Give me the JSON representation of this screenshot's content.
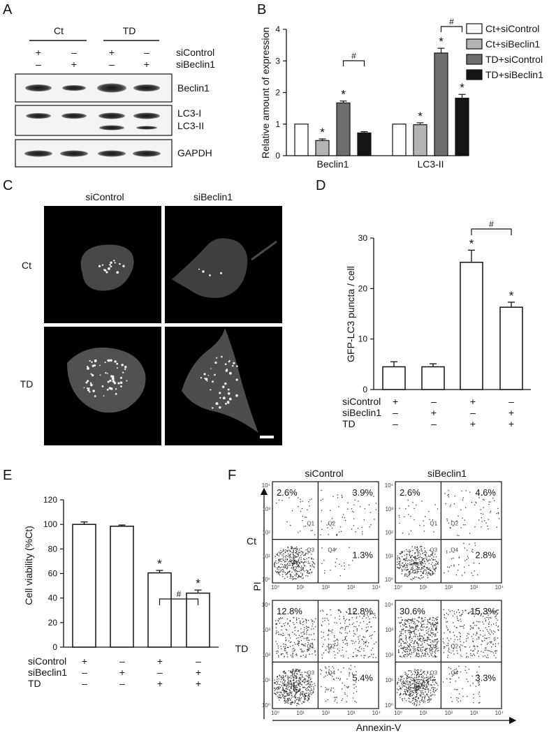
{
  "panels": {
    "A": {
      "label": "A",
      "groups": [
        "Ct",
        "TD"
      ],
      "row_labels": [
        "siControl",
        "siBeclin1"
      ],
      "signs": [
        [
          "+",
          "–",
          "+",
          "–"
        ],
        [
          "–",
          "+",
          "–",
          "+"
        ]
      ],
      "blots": [
        "Beclin1",
        "LC3-I",
        "LC3-II",
        "GAPDH"
      ]
    },
    "B": {
      "label": "B",
      "ylabel": "Relative amount of expression",
      "legend": [
        "Ct+siControl",
        "Ct+siBeclin1",
        "TD+siControl",
        "TD+siBeclin1"
      ],
      "star": "*",
      "hash": "#"
    },
    "C": {
      "label": "C",
      "col_labels": [
        "siControl",
        "siBeclin1"
      ],
      "row_labels": [
        "Ct",
        "TD"
      ]
    },
    "D": {
      "label": "D",
      "ylabel": "GFP-LC3 puncta / cell",
      "row_labels": [
        "siControl",
        "siBeclin1",
        "TD"
      ],
      "signs": [
        [
          "+",
          "–",
          "+",
          "–"
        ],
        [
          "–",
          "+",
          "–",
          "+"
        ],
        [
          "–",
          "–",
          "+",
          "+"
        ]
      ],
      "star": "*",
      "hash": "#"
    },
    "E": {
      "label": "E",
      "ylabel": "Cell viability (%Ct)",
      "row_labels": [
        "siControl",
        "siBeclin1",
        "TD"
      ],
      "signs": [
        [
          "+",
          "–",
          "+",
          "–"
        ],
        [
          "–",
          "+",
          "–",
          "+"
        ],
        [
          "–",
          "–",
          "+",
          "+"
        ]
      ],
      "star": "*",
      "hash": "#"
    },
    "F": {
      "label": "F",
      "col_labels": [
        "siControl",
        "siBeclin1"
      ],
      "row_labels": [
        "Ct",
        "TD"
      ],
      "ylabel": "PI",
      "xlabel": "Annexin-V",
      "quadrant_names": [
        "Q1",
        "Q2",
        "Q3",
        "Q4"
      ],
      "plots": [
        {
          "Q1": "2.6%",
          "Q2": "3.9%",
          "Q4": "1.3%"
        },
        {
          "Q1": "2.6%",
          "Q2": "4.6%",
          "Q4": "2.8%"
        },
        {
          "Q1": "12.8%",
          "Q2": "12.8%",
          "Q4": "5.4%"
        },
        {
          "Q1": "30.6%",
          "Q2": "15.3%",
          "Q4": "3.3%"
        }
      ]
    }
  },
  "chart_data": [
    {
      "type": "bar",
      "panel": "B",
      "categories": [
        "Beclin1",
        "LC3-II"
      ],
      "series": [
        {
          "name": "Ct+siControl",
          "values": [
            1.0,
            1.0
          ],
          "errors": [
            0,
            0
          ]
        },
        {
          "name": "Ct+siBeclin1",
          "values": [
            0.48,
            0.98
          ],
          "errors": [
            0.05,
            0.06
          ]
        },
        {
          "name": "TD+siControl",
          "values": [
            1.67,
            3.25
          ],
          "errors": [
            0.06,
            0.15
          ]
        },
        {
          "name": "TD+siBeclin1",
          "values": [
            0.72,
            1.82
          ],
          "errors": [
            0.04,
            0.12
          ]
        }
      ],
      "colors": [
        "#ffffff",
        "#b4b4b4",
        "#6e6e6e",
        "#161616"
      ],
      "ylabel": "Relative amount of expression",
      "ylim": [
        0,
        4
      ],
      "yticks": [
        "0",
        "1",
        "2",
        "3",
        "4"
      ],
      "legend_position": "top-right"
    },
    {
      "type": "bar",
      "panel": "D",
      "categories": [
        "1",
        "2",
        "3",
        "4"
      ],
      "values": [
        4.5,
        4.5,
        25.2,
        16.3
      ],
      "errors": [
        1.0,
        0.6,
        2.4,
        1.0
      ],
      "ylabel": "GFP-LC3 puncta / cell",
      "ylim": [
        0,
        30
      ],
      "yticks": [
        "0",
        "10",
        "20",
        "30"
      ]
    },
    {
      "type": "bar",
      "panel": "E",
      "categories": [
        "1",
        "2",
        "3",
        "4"
      ],
      "values": [
        100,
        98.5,
        60.5,
        44
      ],
      "errors": [
        2.0,
        1.0,
        2.0,
        2.5
      ],
      "ylabel": "Cell viability (%Ct)",
      "ylim": [
        0,
        120
      ],
      "yticks": [
        "0",
        "20",
        "40",
        "60",
        "80",
        "100",
        "120"
      ]
    }
  ]
}
